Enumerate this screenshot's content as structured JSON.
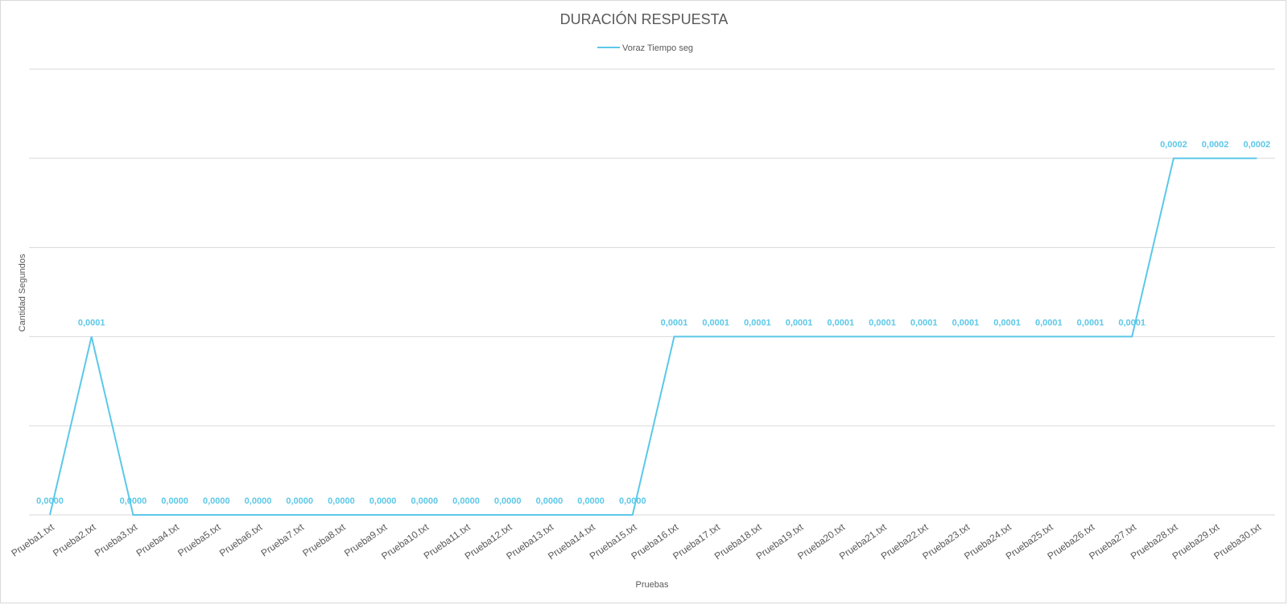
{
  "chart_data": {
    "type": "line",
    "title": "DURACIÓN RESPUESTA",
    "xlabel": "Pruebas",
    "ylabel": "Cantidad Segundos",
    "legend_position": "top",
    "grid": true,
    "ylim": [
      0,
      0.00025
    ],
    "categories": [
      "Prueba1.txt",
      "Prueba2.txt",
      "Prueba3.txt",
      "Prueba4.txt",
      "Prueba5.txt",
      "Prueba6.txt",
      "Prueba7.txt",
      "Prueba8.txt",
      "Prueba9.txt",
      "Prueba10.txt",
      "Prueba11.txt",
      "Prueba12.txt",
      "Prueba13.txt",
      "Prueba14.txt",
      "Prueba15.txt",
      "Prueba16.txt",
      "Prueba17.txt",
      "Prueba18.txt",
      "Prueba19.txt",
      "Prueba20.txt",
      "Prueba21.txt",
      "Prueba22.txt",
      "Prueba23.txt",
      "Prueba24.txt",
      "Prueba25.txt",
      "Prueba26.txt",
      "Prueba27.txt",
      "Prueba28.txt",
      "Prueba29.txt",
      "Prueba30.txt"
    ],
    "series": [
      {
        "name": "Voraz Tiempo seg",
        "color": "#5bc8e8",
        "values": [
          0,
          0.0001,
          0,
          0,
          0,
          0,
          0,
          0,
          0,
          0,
          0,
          0,
          0,
          0,
          0,
          0.0001,
          0.0001,
          0.0001,
          0.0001,
          0.0001,
          0.0001,
          0.0001,
          0.0001,
          0.0001,
          0.0001,
          0.0001,
          0.0001,
          0.0002,
          0.0002,
          0.0002
        ],
        "data_labels": [
          "0,0000",
          "0,0001",
          "0,0000",
          "0,0000",
          "0,0000",
          "0,0000",
          "0,0000",
          "0,0000",
          "0,0000",
          "0,0000",
          "0,0000",
          "0,0000",
          "0,0000",
          "0,0000",
          "0,0000",
          "0,0001",
          "0,0001",
          "0,0001",
          "0,0001",
          "0,0001",
          "0,0001",
          "0,0001",
          "0,0001",
          "0,0001",
          "0,0001",
          "0,0001",
          "0,0001",
          "0,0002",
          "0,0002",
          "0,0002"
        ]
      }
    ]
  }
}
